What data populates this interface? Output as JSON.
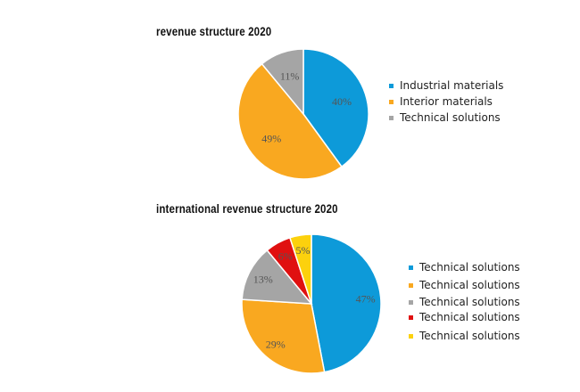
{
  "chart_data": [
    {
      "type": "pie",
      "title": "revenue structure 2020",
      "categories": [
        "Industrial materials",
        "Interior materials",
        "Technical solutions"
      ],
      "values": [
        40,
        49,
        11
      ],
      "labels": [
        "40%",
        "49%",
        "11%"
      ],
      "colors": [
        "#0d9ad9",
        "#f9a820",
        "#a5a5a5"
      ],
      "legend": "right"
    },
    {
      "type": "pie",
      "title": "international revenue structure 2020",
      "categories": [
        "Technical solutions",
        "Technical solutions",
        "Technical solutions",
        "Technical solutions",
        "Technical solutions"
      ],
      "values": [
        47,
        29,
        13,
        6,
        5
      ],
      "labels": [
        "47%",
        "29%",
        "13%",
        "6%",
        "5%"
      ],
      "colors": [
        "#0d9ad9",
        "#f9a820",
        "#a5a5a5",
        "#e01010",
        "#fcd10d"
      ],
      "legend": "right"
    }
  ]
}
